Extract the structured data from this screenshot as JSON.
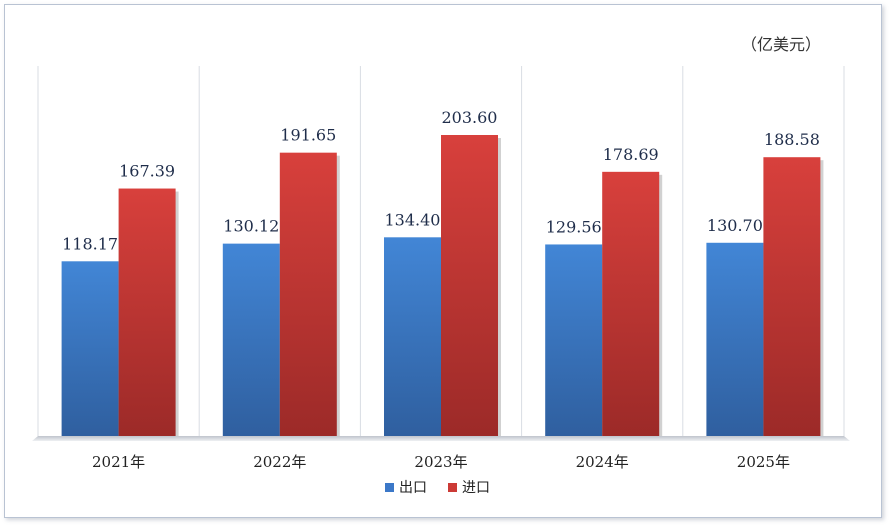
{
  "chart_data": {
    "type": "bar",
    "unit_label": "（亿美元）",
    "categories": [
      "2021年",
      "2022年",
      "2023年",
      "2024年",
      "2025年"
    ],
    "series": [
      {
        "name": "出口",
        "values": [
          118.17,
          130.12,
          134.4,
          129.56,
          130.7
        ],
        "labels": [
          "118.17",
          "130.12",
          "134.40",
          "129.56",
          "130.70"
        ],
        "color": "#3b78c8"
      },
      {
        "name": "进口",
        "values": [
          167.39,
          191.65,
          203.6,
          178.69,
          188.58
        ],
        "labels": [
          "167.39",
          "191.65",
          "203.60",
          "178.69",
          "188.58"
        ],
        "color": "#cc3a36"
      }
    ],
    "ylim": [
      0,
      250
    ],
    "grid": false,
    "legend": "bottom"
  }
}
